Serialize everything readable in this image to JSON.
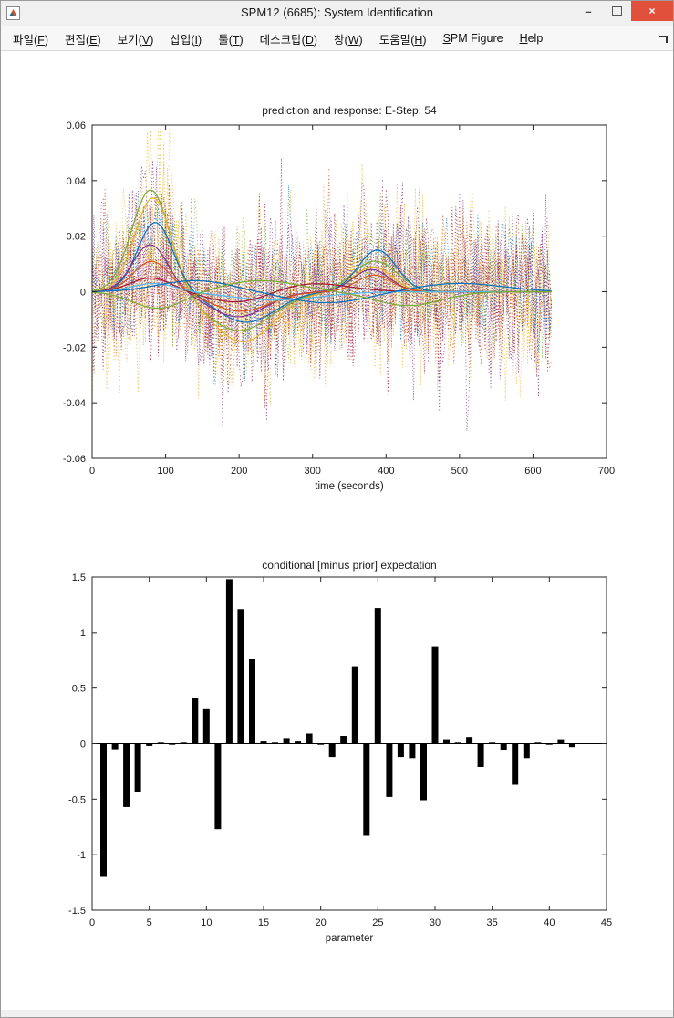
{
  "window": {
    "title": "SPM12 (6685): System Identification",
    "controls": {
      "minimize": "–",
      "maximize": "□",
      "close": "×"
    }
  },
  "ui_colors": {
    "titlebar_bg": "#f0f0f0",
    "menubar_bg": "#f7f7f7",
    "close_button_bg": "#e0503a",
    "axes_color": "#262626",
    "bar_color": "#000000"
  },
  "menubar": {
    "items": [
      {
        "name": "file",
        "pre": "파일(",
        "key": "F",
        "post": ")",
        "label": "파일(F)"
      },
      {
        "name": "edit",
        "pre": "편집(",
        "key": "E",
        "post": ")",
        "label": "편집(E)"
      },
      {
        "name": "view",
        "pre": "보기(",
        "key": "V",
        "post": ")",
        "label": "보기(V)"
      },
      {
        "name": "insert",
        "pre": "삽입(",
        "key": "I",
        "post": ")",
        "label": "삽입(I)"
      },
      {
        "name": "tools",
        "pre": "툴(",
        "key": "T",
        "post": ")",
        "label": "툴(T)"
      },
      {
        "name": "desktop",
        "pre": "데스크탑(",
        "key": "D",
        "post": ")",
        "label": "데스크탑(D)"
      },
      {
        "name": "window",
        "pre": "창(",
        "key": "W",
        "post": ")",
        "label": "창(W)"
      },
      {
        "name": "help-ko",
        "pre": "도움말(",
        "key": "H",
        "post": ")",
        "label": "도움말(H)"
      },
      {
        "name": "spm-figure",
        "pre": "",
        "key": "S",
        "post": "PM Figure",
        "label": "SPM Figure"
      },
      {
        "name": "help",
        "pre": "",
        "key": "H",
        "post": "elp",
        "label": "Help"
      }
    ]
  },
  "chart_data": [
    {
      "type": "line",
      "title": "prediction and response: E-Step: 54",
      "xlabel": "time (seconds)",
      "ylabel": "",
      "xlim": [
        0,
        700
      ],
      "ylim": [
        -0.06,
        0.06
      ],
      "xticks": [
        0,
        100,
        200,
        300,
        400,
        500,
        600,
        700
      ],
      "yticks": [
        -0.06,
        -0.04,
        -0.02,
        0,
        0.02,
        0.04,
        0.06
      ],
      "grid": false,
      "legend": "none",
      "x_data_max": 625,
      "description": "Overlaid fMRI time-courses: smooth solid prediction curves (main peak near t=80s up to 0.037, dip near t=200s to -0.018, secondary peak near t=385s ~0.015) with dense high-frequency dotted noisy response traces spanning roughly -0.05 to 0.05",
      "smooth_series": [
        {
          "color": "#77AC30",
          "bumps": [
            [
              80,
              0.037,
              26
            ],
            [
              200,
              -0.014,
              45
            ],
            [
              385,
              0.011,
              30
            ]
          ]
        },
        {
          "color": "#EDB120",
          "bumps": [
            [
              83,
              0.034,
              25
            ],
            [
              205,
              -0.018,
              42
            ],
            [
              382,
              0.009,
              26
            ]
          ]
        },
        {
          "color": "#0072BD",
          "bumps": [
            [
              86,
              0.025,
              24
            ],
            [
              210,
              -0.011,
              40
            ],
            [
              388,
              0.015,
              26
            ]
          ]
        },
        {
          "color": "#7E2F8E",
          "bumps": [
            [
              79,
              0.017,
              24
            ],
            [
              198,
              -0.009,
              38
            ],
            [
              380,
              0.008,
              25
            ]
          ]
        },
        {
          "color": "#D95319",
          "bumps": [
            [
              81,
              0.011,
              25
            ],
            [
              202,
              -0.007,
              40
            ],
            [
              384,
              0.006,
              24
            ]
          ]
        },
        {
          "color": "#A2142F",
          "bumps": [
            [
              80,
              0.005,
              28
            ],
            [
              200,
              -0.004,
              40
            ],
            [
              300,
              0.003,
              50
            ]
          ]
        },
        {
          "color": "#4DBEEE",
          "bumps": [
            [
              84,
              0.003,
              30
            ],
            [
              250,
              -0.003,
              60
            ]
          ]
        },
        {
          "color": "#0072BD",
          "bumps": [
            [
              140,
              0.004,
              50
            ],
            [
              320,
              -0.004,
              55
            ],
            [
              500,
              0.003,
              60
            ]
          ]
        },
        {
          "color": "#77AC30",
          "bumps": [
            [
              90,
              -0.006,
              35
            ],
            [
              230,
              0.004,
              50
            ],
            [
              430,
              -0.005,
              45
            ]
          ]
        }
      ],
      "noisy_series": [
        {
          "color": "#EDB120",
          "sigma": 0.016,
          "seed": 1,
          "bumps": [
            [
              83,
              0.034,
              25
            ],
            [
              205,
              -0.018,
              42
            ],
            [
              382,
              0.009,
              26
            ]
          ]
        },
        {
          "color": "#EDB120",
          "sigma": 0.013,
          "seed": 2,
          "bumps": [
            [
              83,
              0.02,
              25
            ],
            [
              205,
              -0.012,
              42
            ]
          ]
        },
        {
          "color": "#EDB120",
          "sigma": 0.018,
          "seed": 3,
          "bumps": [
            [
              90,
              0.01,
              30
            ]
          ]
        },
        {
          "color": "#EDB120",
          "sigma": 0.012,
          "seed": 4,
          "bumps": [
            [
              380,
              0.01,
              26
            ],
            [
              205,
              -0.01,
              40
            ]
          ]
        },
        {
          "color": "#7E2F8E",
          "sigma": 0.017,
          "seed": 5,
          "bumps": [
            [
              79,
              0.017,
              24
            ],
            [
              198,
              -0.009,
              38
            ],
            [
              380,
              0.008,
              25
            ]
          ]
        },
        {
          "color": "#7E2F8E",
          "sigma": 0.013,
          "seed": 6,
          "bumps": [
            [
              80,
              0.03,
              25
            ],
            [
              200,
              -0.012,
              40
            ]
          ]
        },
        {
          "color": "#7E2F8E",
          "sigma": 0.012,
          "seed": 7,
          "bumps": [
            [
              385,
              0.012,
              26
            ]
          ]
        },
        {
          "color": "#A2142F",
          "sigma": 0.015,
          "seed": 8,
          "bumps": [
            [
              80,
              0.015,
              26
            ],
            [
              205,
              -0.012,
              42
            ]
          ]
        },
        {
          "color": "#A2142F",
          "sigma": 0.012,
          "seed": 9,
          "bumps": [
            [
              300,
              0.001,
              50
            ]
          ]
        },
        {
          "color": "#0072BD",
          "sigma": 0.012,
          "seed": 10,
          "bumps": [
            [
              86,
              0.02,
              24
            ],
            [
              388,
              0.012,
              26
            ]
          ]
        },
        {
          "color": "#D95319",
          "sigma": 0.014,
          "seed": 11,
          "bumps": [
            [
              81,
              0.01,
              25
            ],
            [
              202,
              -0.007,
              40
            ]
          ]
        },
        {
          "color": "#77AC30",
          "sigma": 0.011,
          "seed": 12,
          "bumps": [
            [
              80,
              0.02,
              26
            ],
            [
              385,
              0.008,
              28
            ]
          ]
        }
      ]
    },
    {
      "type": "bar",
      "title": "conditional [minus prior] expectation",
      "xlabel": "parameter",
      "ylabel": "",
      "xlim": [
        0,
        45
      ],
      "ylim": [
        -1.5,
        1.5
      ],
      "xticks": [
        0,
        5,
        10,
        15,
        20,
        25,
        30,
        35,
        40,
        45
      ],
      "yticks": [
        -1.5,
        -1,
        -0.5,
        0,
        0.5,
        1,
        1.5
      ],
      "grid": false,
      "legend": "none",
      "bar_color": "#000000",
      "categories": [
        1,
        2,
        3,
        4,
        5,
        6,
        7,
        8,
        9,
        10,
        11,
        12,
        13,
        14,
        15,
        16,
        17,
        18,
        19,
        20,
        21,
        22,
        23,
        24,
        25,
        26,
        27,
        28,
        29,
        30,
        31,
        32,
        33,
        34,
        35,
        36,
        37,
        38,
        39,
        40,
        41,
        42
      ],
      "values": [
        -1.2,
        -0.05,
        -0.57,
        -0.44,
        -0.02,
        0.01,
        -0.01,
        0.01,
        0.41,
        0.31,
        -0.77,
        1.48,
        1.21,
        0.76,
        0.02,
        0.01,
        0.05,
        0.02,
        0.09,
        -0.01,
        -0.12,
        0.07,
        0.69,
        -0.83,
        1.22,
        -0.48,
        -0.12,
        -0.13,
        -0.51,
        0.87,
        0.04,
        0.01,
        0.06,
        -0.21,
        0.01,
        -0.06,
        -0.37,
        -0.13,
        0.01,
        -0.01,
        0.04,
        -0.03
      ]
    }
  ]
}
